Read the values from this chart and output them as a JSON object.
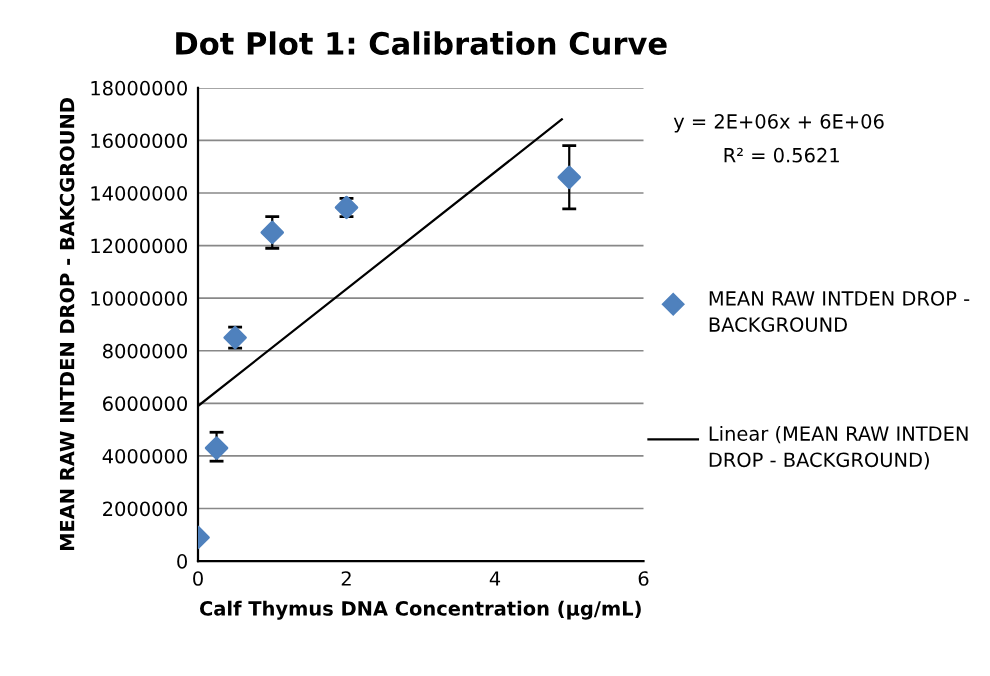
{
  "chart_data": {
    "type": "scatter",
    "title": "Dot Plot 1: Calibration Curve",
    "xlabel": "Calf Thymus DNA Concentration (µg/mL)",
    "ylabel": "MEAN RAW INTDEN DROP - BAKCGROUND",
    "x": [
      0,
      0.25,
      0.5,
      1,
      2,
      5
    ],
    "series": [
      {
        "name": "MEAN RAW INTDEN DROP - BACKGROUND",
        "color": "#4f81bd",
        "values": [
          900000,
          4300000,
          8500000,
          12500000,
          13450000,
          14600000
        ],
        "errors": [
          null,
          [
            3800000,
            4900000
          ],
          [
            8100000,
            8900000
          ],
          [
            11900000,
            13100000
          ],
          [
            13100000,
            13800000
          ],
          [
            13400000,
            15800000
          ]
        ],
        "marker": "diamond"
      },
      {
        "name": "Linear (MEAN RAW INTDEN DROP - BACKGROUND)",
        "type": "line",
        "color": "#000000",
        "x": [
          0,
          4.9
        ],
        "values": [
          5900000,
          16800000
        ],
        "marker": "none"
      }
    ],
    "annotations": [
      "y = 2E+06x + 6E+06",
      "R² = 0.5621"
    ],
    "xlim": [
      0,
      6
    ],
    "xticks": [
      0,
      2,
      4,
      6
    ],
    "ylim": [
      0,
      18000000
    ],
    "yticks": [
      0,
      2000000,
      4000000,
      6000000,
      8000000,
      10000000,
      12000000,
      14000000,
      16000000,
      18000000
    ],
    "grid": "y",
    "legend": "right"
  }
}
